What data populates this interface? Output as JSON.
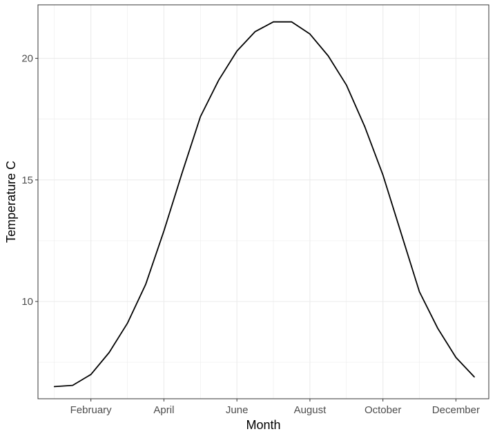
{
  "chart_data": {
    "type": "line",
    "title": "",
    "xlabel": "Month",
    "ylabel": "Temperature C",
    "x_tick_labels": [
      "February",
      "April",
      "June",
      "August",
      "October",
      "December"
    ],
    "x_tick_months": [
      2,
      4,
      6,
      8,
      10,
      12
    ],
    "xlim": [
      0.55,
      12.9
    ],
    "y_ticks": [
      10,
      15,
      20
    ],
    "ylim": [
      6.0,
      22.2
    ],
    "grid": true,
    "legend": "none",
    "colors": {
      "line": "#000000",
      "grid": "#ebebeb",
      "panel_border": "#333333"
    },
    "series": [
      {
        "x": [
          1.0,
          1.5,
          2.0,
          2.5,
          3.0,
          3.5,
          4.0,
          4.5,
          5.0,
          5.5,
          6.0,
          6.5,
          7.0,
          7.5,
          8.0,
          8.5,
          9.0,
          9.5,
          10.0,
          10.5,
          11.0,
          11.5,
          12.0,
          12.5
        ],
        "values": [
          6.5,
          6.55,
          7.0,
          7.9,
          9.1,
          10.7,
          12.9,
          15.3,
          17.6,
          19.1,
          20.3,
          21.1,
          21.5,
          21.5,
          21.0,
          20.1,
          18.9,
          17.2,
          15.2,
          12.8,
          10.4,
          8.9,
          7.7,
          6.9
        ]
      }
    ]
  }
}
